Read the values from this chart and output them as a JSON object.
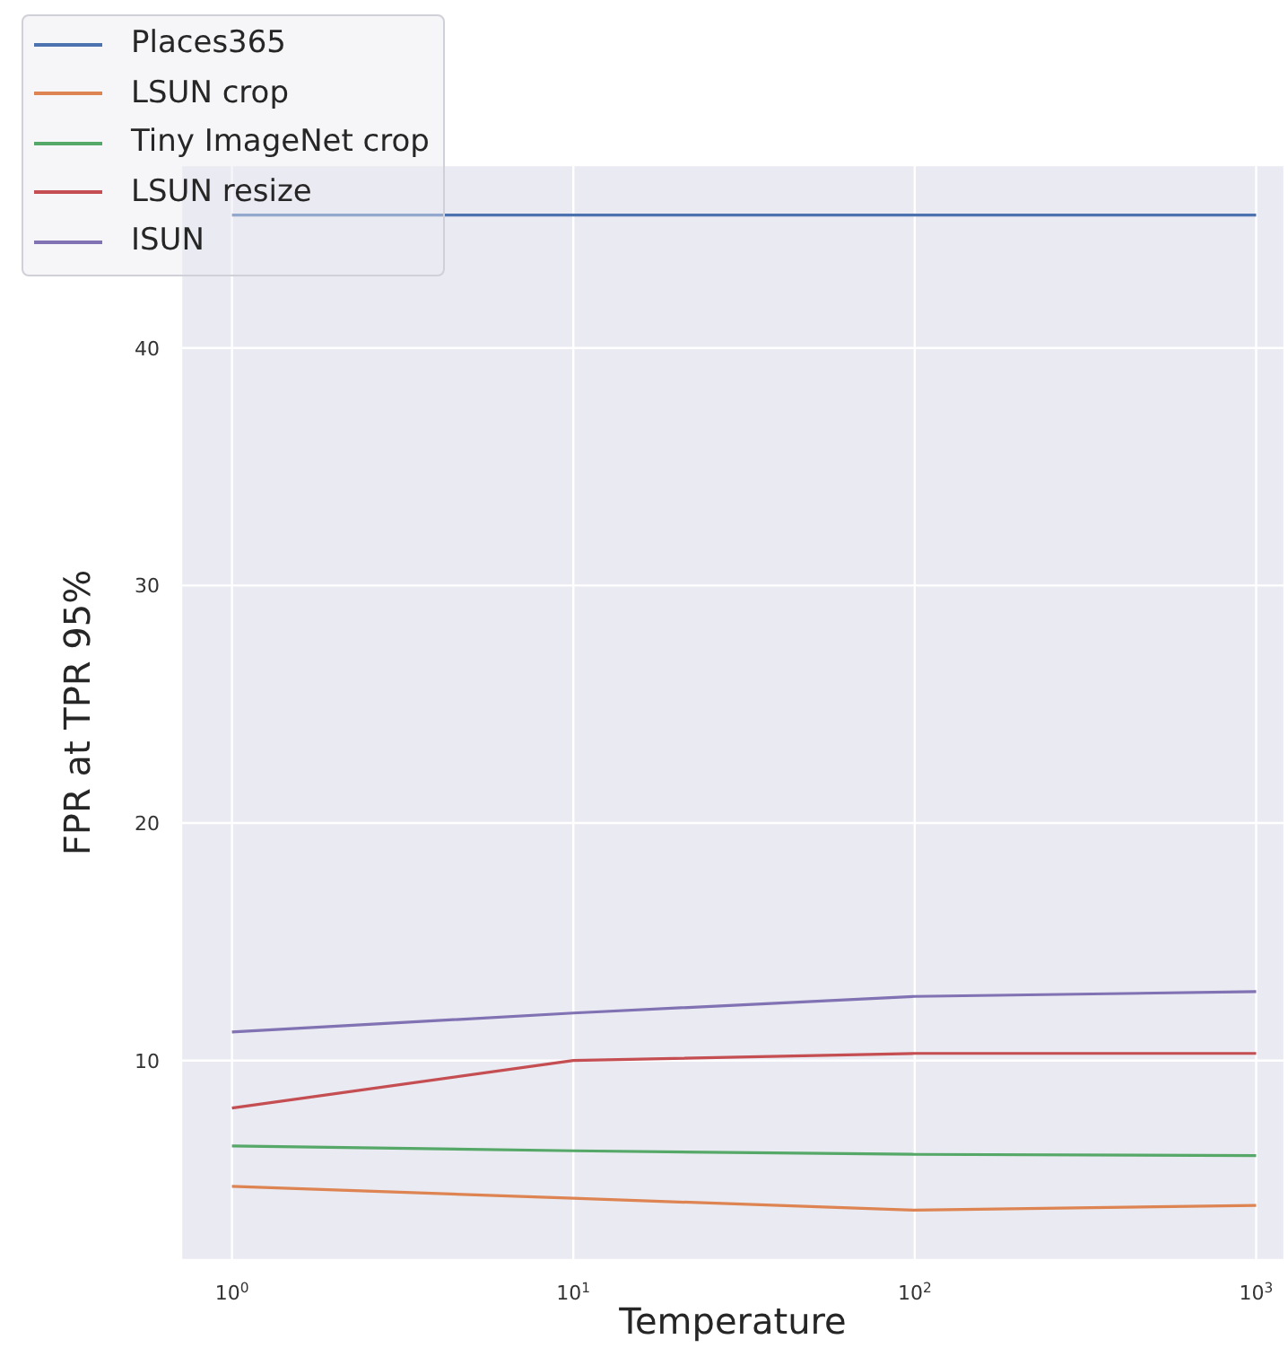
{
  "chart_data": {
    "type": "line",
    "xlabel": "Temperature",
    "ylabel": "FPR at TPR 95%",
    "x": [
      1,
      10,
      100,
      1000
    ],
    "series": [
      {
        "name": "Places365",
        "color": "#4c72b0",
        "values": [
          45.6,
          45.6,
          45.6,
          45.6
        ]
      },
      {
        "name": "LSUN crop",
        "color": "#dd8452",
        "values": [
          4.7,
          4.2,
          3.7,
          3.9
        ]
      },
      {
        "name": "Tiny ImageNet crop",
        "color": "#55a868",
        "values": [
          6.4,
          6.2,
          6.05,
          6.0
        ]
      },
      {
        "name": "LSUN resize",
        "color": "#c44e52",
        "values": [
          8.0,
          10.0,
          10.3,
          10.3
        ]
      },
      {
        "name": "ISUN",
        "color": "#8172b3",
        "values": [
          11.2,
          12.0,
          12.7,
          12.9
        ]
      }
    ],
    "log": "x",
    "xlim": [
      0.71,
      1210
    ],
    "xticks": [
      {
        "value": 1,
        "label": "10$^{0}$"
      },
      {
        "value": 10,
        "label": "10$^{1}$"
      },
      {
        "value": 100,
        "label": "10$^{2}$"
      },
      {
        "value": 1000,
        "label": "10$^{3}$"
      }
    ],
    "ylim": [
      1.6,
      47.7
    ],
    "yticks": [
      10,
      20,
      30,
      40
    ],
    "grid": true,
    "legend": "top left",
    "marker": "none",
    "line_style": "solid"
  }
}
